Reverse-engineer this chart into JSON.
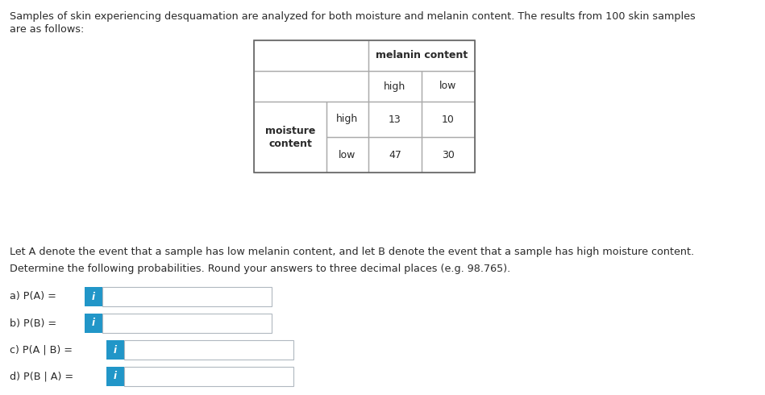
{
  "intro_text_line1": "Samples of skin experiencing desquamation are analyzed for both moisture and melanin content. The results from 100 skin samples",
  "intro_text_line2": "are as follows:",
  "body_text_line1": "Let A denote the event that a sample has low melanin content, and let B denote the event that a sample has high moisture content.",
  "body_text_line2": "Determine the following probabilities. Round your answers to three decimal places (e.g. 98.765).",
  "questions": [
    "a) P(A) =",
    "b) P(B) =",
    "c) P(A | B) =",
    "d) P(B | A) ="
  ],
  "icon_color": "#2196C8",
  "icon_text": "i",
  "box_border_color": "#b0b8c0",
  "text_color": "#2a2a2a",
  "background_color": "#ffffff",
  "table_border_color": "#aaaaaa",
  "melanin_content_label": "melanin content",
  "moisture_content_label": "moisture\ncontent",
  "col_subheaders": [
    "high",
    "low"
  ],
  "row_subheaders": [
    "high",
    "low"
  ],
  "values": [
    [
      "13",
      "10"
    ],
    [
      "47",
      "30"
    ]
  ]
}
